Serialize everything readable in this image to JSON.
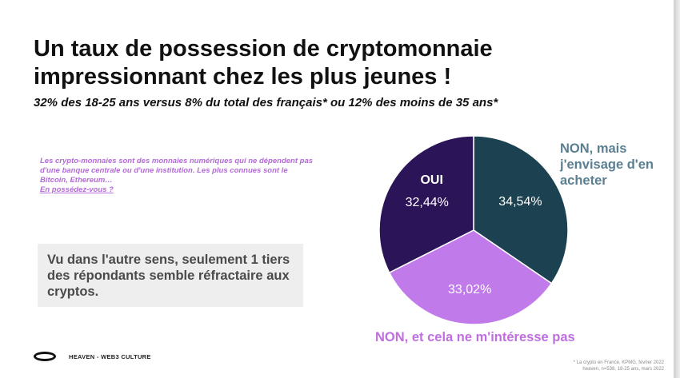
{
  "slide": {
    "title_line1": "Un taux de possession de cryptomonnaie",
    "title_line2": "impressionnant chez les plus jeunes !",
    "subtitle": "32% des 18-25 ans versus 8% du total des français* ou 12% des moins de 35 ans*",
    "definition_text": "Les crypto-monnaies sont des monnaies numériques qui ne dépendent pas d'une banque centrale ou d'une institution.  Les plus connues sont le Bitcoin, Ethereum…",
    "definition_question": "En possédez-vous ?",
    "callout": "Vu dans l'autre sens, seulement 1 tiers des répondants semble réfractaire aux cryptos.",
    "brand": "HEAVEN - WEB3 CULTURE",
    "source_line1": "* La crypto en France, KPMG, février 2022",
    "source_line2": "heaven, n=538, 18-25 ans, mars 2022"
  },
  "chart_data": {
    "type": "pie",
    "title": "",
    "slices": [
      {
        "label": "NON, mais j'envisage d'en acheter",
        "value": 34.54,
        "display": "34,54%",
        "color": "#1c4150"
      },
      {
        "label": "NON, et cela ne m'intéresse pas",
        "value": 33.02,
        "display": "33,02%",
        "color": "#c17ae9"
      },
      {
        "label": "OUI",
        "value": 32.44,
        "display": "32,44%",
        "color": "#2c1459"
      }
    ],
    "start": "top",
    "direction": "clockwise"
  }
}
